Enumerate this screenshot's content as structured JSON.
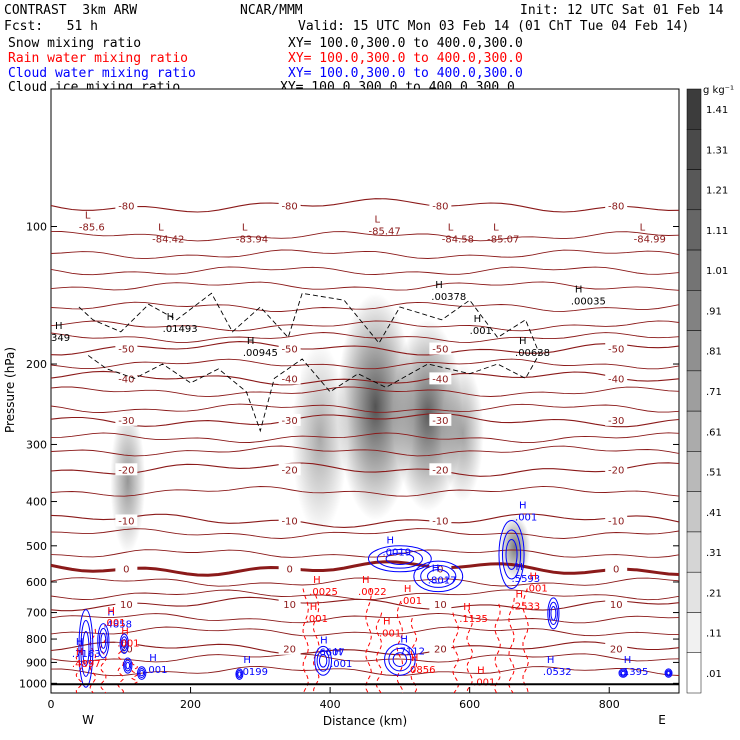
{
  "header": {
    "model": "CONTRAST  3km ARW",
    "center": "NCAR/MMM",
    "init": "Init: 12 UTC Sat 01 Feb 14",
    "fcst": "Fcst:   51 h",
    "valid": "Valid: 15 UTC Mon 03 Feb 14 (01 ChT Tue 04 Feb 14)",
    "lines": [
      {
        "label": "Snow mixing ratio",
        "xy": "XY= 100.0,300.0 to 400.0,300.0",
        "color": "#000000"
      },
      {
        "label": "Rain water mixing ratio",
        "xy": "XY= 100.0,300.0 to 400.0,300.0",
        "color": "#ff0000"
      },
      {
        "label": "Cloud water mixing ratio",
        "xy": "XY= 100.0,300.0 to 400.0,300.0",
        "color": "#0000ff"
      },
      {
        "label": "Cloud ice mixing ratio",
        "xy": "XY= 100.0,300.0 to 400.0,300.0",
        "color": "#000000"
      }
    ]
  },
  "colorbar": {
    "unit": "g kg⁻¹",
    "ticks": [
      "1.41",
      "1.31",
      "1.21",
      "1.11",
      "1.01",
      ".91",
      ".81",
      ".71",
      ".61",
      ".51",
      ".41",
      ".31",
      ".21",
      ".11",
      ".01"
    ]
  },
  "chart_data": {
    "type": "contour",
    "xlabel": "Distance (km)",
    "ylabel": "Pressure (hPa)",
    "x_ticks": [
      "0",
      "200",
      "400",
      "600",
      "800"
    ],
    "y_ticks": [
      "100",
      "200",
      "300",
      "400",
      "500",
      "600",
      "700",
      "800",
      "900",
      "1000"
    ],
    "xlim": [
      0,
      900
    ],
    "ylim": [
      1050,
      50
    ],
    "y_scale": "log",
    "left_end_label": "W",
    "right_end_label": "E",
    "temperature_contours": [
      {
        "label": "-80",
        "approx_pressure": 90,
        "color": "#8b1a1a"
      },
      {
        "label": "-50",
        "approx_pressure": 185,
        "color": "#8b1a1a"
      },
      {
        "label": "-40",
        "approx_pressure": 215,
        "color": "#8b1a1a"
      },
      {
        "label": "-30",
        "approx_pressure": 265,
        "color": "#8b1a1a"
      },
      {
        "label": "-20",
        "approx_pressure": 340,
        "color": "#8b1a1a"
      },
      {
        "label": "-10",
        "approx_pressure": 440,
        "color": "#8b1a1a"
      },
      {
        "label": "0",
        "approx_pressure": 560,
        "color": "#8b1a1a"
      },
      {
        "label": "10",
        "approx_pressure": 670,
        "color": "#8b1a1a"
      },
      {
        "label": "20",
        "approx_pressure": 840,
        "color": "#8b1a1a"
      }
    ],
    "upper_labels": [
      {
        "text": "L",
        "value": "-85.6",
        "x": 40,
        "p": 97
      },
      {
        "text": "L",
        "value": "-84.42",
        "x": 145,
        "p": 103
      },
      {
        "text": "L",
        "value": "-83.94",
        "x": 265,
        "p": 103
      },
      {
        "text": "L",
        "value": "-85.47",
        "x": 455,
        "p": 99
      },
      {
        "text": "L",
        "value": "-84.58",
        "x": 560,
        "p": 103
      },
      {
        "text": "L",
        "value": "-85.07",
        "x": 625,
        "p": 103
      },
      {
        "text": "L",
        "value": "-84.99",
        "x": 835,
        "p": 103
      }
    ],
    "ice_maxima": [
      {
        "value": ".00378",
        "x": 545,
        "p": 145
      },
      {
        "value": ".00035",
        "x": 745,
        "p": 148
      },
      {
        "value": ".01493",
        "x": 160,
        "p": 170
      },
      {
        "value": ".00945",
        "x": 275,
        "p": 192
      },
      {
        "value": ".00638",
        "x": 665,
        "p": 192
      },
      {
        "value": ".001",
        "x": 600,
        "p": 172
      },
      {
        "value": "349",
        "x": 0,
        "p": 178
      }
    ],
    "cloud_water_maxima": [
      {
        "value": ".0019",
        "x": 475,
        "p": 525
      },
      {
        "value": ".001",
        "x": 665,
        "p": 440
      },
      {
        "value": ".8017",
        "x": 540,
        "p": 605
      },
      {
        "value": ".5593",
        "x": 660,
        "p": 600
      },
      {
        "value": ".7163",
        "x": 30,
        "p": 875
      },
      {
        "value": ".4858",
        "x": 75,
        "p": 755
      },
      {
        "value": ".6607",
        "x": 380,
        "p": 870
      },
      {
        "value": ".7112",
        "x": 495,
        "p": 865
      },
      {
        "value": ".0199",
        "x": 270,
        "p": 960
      },
      {
        "value": ".0532",
        "x": 705,
        "p": 960
      },
      {
        "value": ".1395",
        "x": 815,
        "p": 960
      },
      {
        "value": ".001",
        "x": 400,
        "p": 920
      },
      {
        "value": ".001",
        "x": 135,
        "p": 950
      }
    ],
    "rain_maxima": [
      {
        "value": ".0025",
        "x": 370,
        "p": 640
      },
      {
        "value": ".0022",
        "x": 440,
        "p": 640
      },
      {
        "value": ".001",
        "x": 500,
        "p": 670
      },
      {
        "value": ".001",
        "x": 365,
        "p": 735
      },
      {
        "value": ".1135",
        "x": 585,
        "p": 735
      },
      {
        "value": ".2533",
        "x": 660,
        "p": 690
      },
      {
        "value": ".001",
        "x": 470,
        "p": 790
      },
      {
        "value": ".001",
        "x": 75,
        "p": 750
      },
      {
        "value": ".001",
        "x": 95,
        "p": 830
      },
      {
        "value": ".4897",
        "x": 30,
        "p": 920
      },
      {
        "value": ".0856",
        "x": 510,
        "p": 950
      },
      {
        "value": ".001",
        "x": 605,
        "p": 1010
      },
      {
        "value": ".001",
        "x": 680,
        "p": 630
      }
    ],
    "snow_shading": [
      {
        "x_center": 110,
        "p_top": 250,
        "p_bot": 520,
        "width": 25,
        "intensity": 0.55
      },
      {
        "x_center": 385,
        "p_top": 180,
        "p_bot": 470,
        "width": 40,
        "intensity": 0.45
      },
      {
        "x_center": 465,
        "p_top": 140,
        "p_bot": 440,
        "width": 55,
        "intensity": 0.9
      },
      {
        "x_center": 540,
        "p_top": 160,
        "p_bot": 420,
        "width": 50,
        "intensity": 0.85
      },
      {
        "x_center": 590,
        "p_top": 200,
        "p_bot": 400,
        "width": 30,
        "intensity": 0.5
      },
      {
        "x_center": 665,
        "p_top": 430,
        "p_bot": 590,
        "width": 22,
        "intensity": 0.7
      }
    ]
  }
}
